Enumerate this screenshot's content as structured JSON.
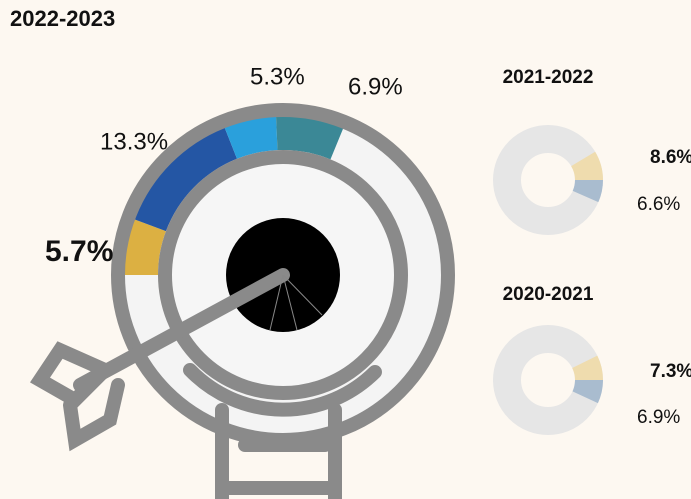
{
  "chart_data": [
    {
      "type": "donut",
      "title": "2022-2023",
      "values": [
        5.7,
        13.3,
        5.3,
        6.9
      ],
      "value_labels": [
        "5.7%",
        "13.3%",
        "5.3%",
        "6.9%"
      ],
      "colors": [
        "#dcb042",
        "#2456a4",
        "#2aa0dc",
        "#3b8896"
      ]
    },
    {
      "type": "donut",
      "title": "2021-2022",
      "values": [
        8.6,
        6.6
      ],
      "value_labels": [
        "8.6%",
        "6.6%"
      ],
      "colors": [
        "#efdcae",
        "#a9bccf"
      ]
    },
    {
      "type": "donut",
      "title": "2020-2021",
      "values": [
        7.3,
        6.9
      ],
      "value_labels": [
        "7.3%",
        "6.9%"
      ],
      "colors": [
        "#efdcae",
        "#a9bccf"
      ]
    }
  ]
}
